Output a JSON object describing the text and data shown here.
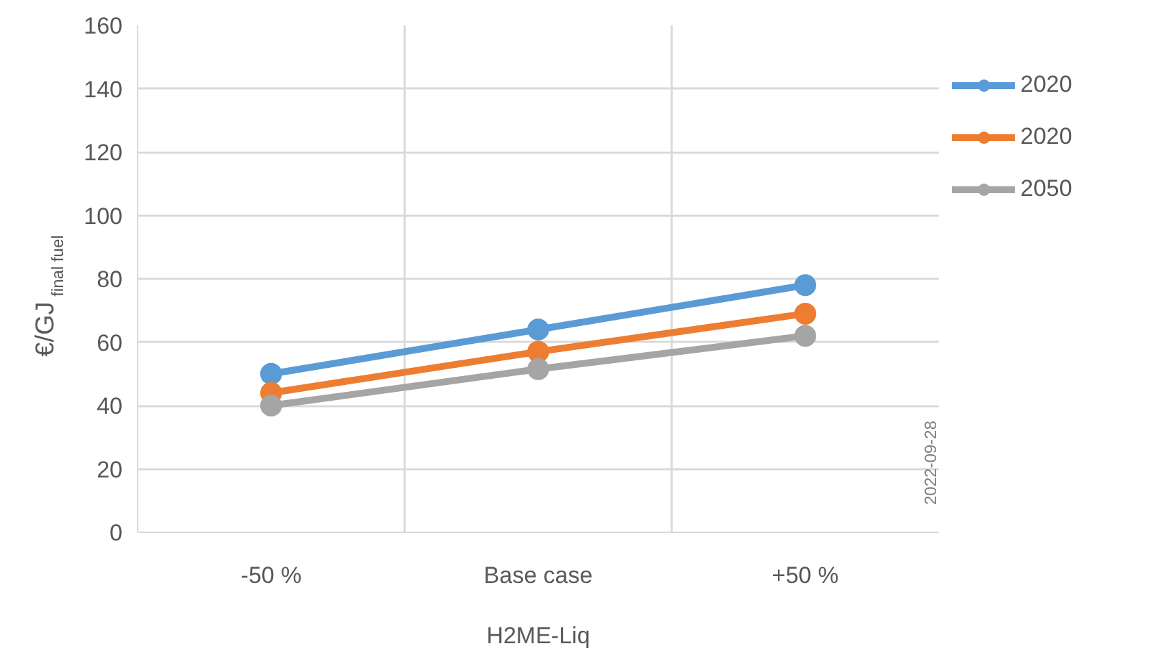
{
  "chart_data": {
    "type": "line",
    "categories": [
      "-50 %",
      "Base case",
      "+50 %"
    ],
    "xlabel": "H2ME-Liq",
    "ylabel": "€/GJ$_{final fuel}$",
    "ylim": [
      0,
      160
    ],
    "yticks": [
      0,
      20,
      40,
      60,
      80,
      100,
      120,
      140,
      160
    ],
    "grid": true,
    "legend": "right",
    "marker": "circle",
    "line_style": "solid",
    "series": [
      {
        "name": "2020",
        "color": "#5b9bd5",
        "values": [
          50,
          64,
          78
        ]
      },
      {
        "name": "2020",
        "color": "#ed7d31",
        "values": [
          44,
          57,
          69
        ]
      },
      {
        "name": "2050",
        "color": "#a5a5a5",
        "values": [
          40,
          51.5,
          62
        ]
      }
    ],
    "annotations": [
      "2022-09-28"
    ]
  }
}
